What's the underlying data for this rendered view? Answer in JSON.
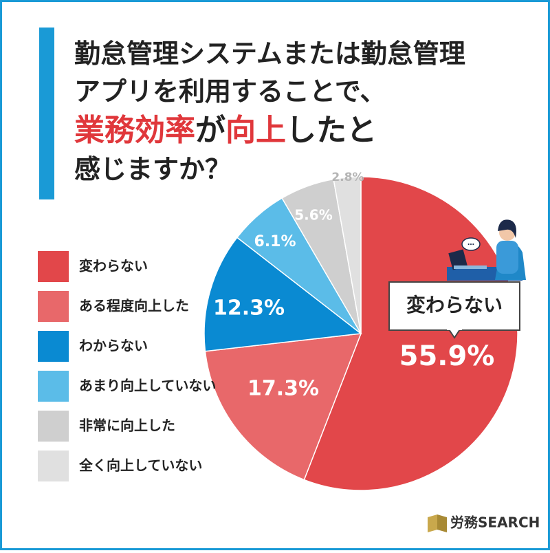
{
  "chart_data": {
    "type": "pie",
    "title_lines": [
      [
        {
          "text": "勤怠管理システムまたは勤怠管理",
          "highlight": false
        }
      ],
      [
        {
          "text": "アプリを利用することで、",
          "highlight": false
        }
      ],
      [
        {
          "text": "業務効率",
          "highlight": true
        },
        {
          "text": "が",
          "highlight": false
        },
        {
          "text": "向上",
          "highlight": true
        },
        {
          "text": "したと",
          "highlight": false
        }
      ],
      [
        {
          "text": "感じますか？",
          "highlight": false
        }
      ]
    ],
    "highlight_color": "#e0373b",
    "categories": [
      "変わらない",
      "ある程度向上した",
      "わからない",
      "あまり向上していない",
      "非常に向上した",
      "全く向上していない"
    ],
    "values": [
      55.9,
      17.3,
      12.3,
      6.1,
      5.6,
      2.8
    ],
    "value_labels": [
      "55.9%",
      "17.3%",
      "12.3%",
      "6.1%",
      "5.6%",
      "2.8%"
    ],
    "colors": [
      "#e2474a",
      "#e8686a",
      "#0a8ad2",
      "#5bbce8",
      "#cfcfcf",
      "#e0e0e0"
    ],
    "callout": "変わらない",
    "logo": "労務SEARCH"
  }
}
